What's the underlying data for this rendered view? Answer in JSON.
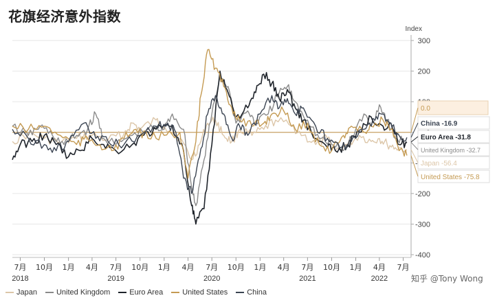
{
  "title": "花旗经济意外指数",
  "watermark": "知乎 @Tony Wong",
  "colors": {
    "japan": "#dcc6a8",
    "united_kingdom": "#8a8a8a",
    "euro_area": "#1e232a",
    "united_states": "#c49a52",
    "china": "#3b4452",
    "grid": "#e6e6e6",
    "axis": "#aaaaaa",
    "zero_line": "#c8a264"
  },
  "chart_data": {
    "type": "line",
    "ylabel": "Index",
    "ylim": [
      -400,
      300
    ],
    "yticks": [
      300,
      200,
      100,
      0,
      -100,
      -200,
      -300,
      -400
    ],
    "x_range": [
      "2018-06-01",
      "2022-07-31"
    ],
    "xticks": [
      {
        "date": "2018-07-01",
        "label": "7月"
      },
      {
        "date": "2018-10-01",
        "label": "10月"
      },
      {
        "date": "2019-01-01",
        "label": "1月"
      },
      {
        "date": "2019-04-01",
        "label": "4月"
      },
      {
        "date": "2019-07-01",
        "label": "7月"
      },
      {
        "date": "2019-10-01",
        "label": "10月"
      },
      {
        "date": "2020-01-01",
        "label": "1月"
      },
      {
        "date": "2020-04-01",
        "label": "4月"
      },
      {
        "date": "2020-07-01",
        "label": "7月"
      },
      {
        "date": "2020-10-01",
        "label": "10月"
      },
      {
        "date": "2021-01-01",
        "label": "1月"
      },
      {
        "date": "2021-04-01",
        "label": "4月"
      },
      {
        "date": "2021-07-01",
        "label": "7月"
      },
      {
        "date": "2021-10-01",
        "label": "10月"
      },
      {
        "date": "2022-01-01",
        "label": "1月"
      },
      {
        "date": "2022-04-01",
        "label": "4月"
      },
      {
        "date": "2022-07-01",
        "label": "7月"
      }
    ],
    "year_labels": [
      {
        "date": "2018-07-01",
        "label": "2018"
      },
      {
        "date": "2019-07-01",
        "label": "2019"
      },
      {
        "date": "2020-07-01",
        "label": "2020"
      },
      {
        "date": "2021-07-01",
        "label": "2021"
      },
      {
        "date": "2022-04-01",
        "label": "2022"
      }
    ],
    "end_labels": [
      {
        "label": "0.0",
        "value": 0.0,
        "style": "zero"
      },
      {
        "label": "China -16.9",
        "value": -16.9,
        "series": "China"
      },
      {
        "label": "Euro Area -31.8",
        "value": -31.8,
        "series": "Euro Area"
      },
      {
        "label": "United Kingdom -32.7",
        "value": -32.7,
        "series": "United Kingdom"
      },
      {
        "label": "Japan -56.4",
        "value": -56.4,
        "series": "Japan"
      },
      {
        "label": "United States -75.8",
        "value": -75.8,
        "series": "United States"
      }
    ],
    "series": [
      {
        "name": "Japan",
        "color_key": "japan",
        "data": [
          [
            "2018-06-01",
            -30
          ],
          [
            "2018-08-01",
            -5
          ],
          [
            "2018-10-01",
            -20
          ],
          [
            "2018-12-01",
            -35
          ],
          [
            "2019-02-01",
            -20
          ],
          [
            "2019-04-01",
            -10
          ],
          [
            "2019-06-01",
            -25
          ],
          [
            "2019-08-01",
            -5
          ],
          [
            "2019-09-01",
            30
          ],
          [
            "2019-10-01",
            10
          ],
          [
            "2019-12-01",
            40
          ],
          [
            "2020-01-01",
            20
          ],
          [
            "2020-03-01",
            -20
          ],
          [
            "2020-04-15",
            -90
          ],
          [
            "2020-05-15",
            -40
          ],
          [
            "2020-06-15",
            30
          ],
          [
            "2020-07-15",
            40
          ],
          [
            "2020-08-15",
            -10
          ],
          [
            "2020-09-15",
            -30
          ],
          [
            "2020-10-15",
            10
          ],
          [
            "2020-12-01",
            -10
          ],
          [
            "2021-01-15",
            10
          ],
          [
            "2021-03-01",
            40
          ],
          [
            "2021-05-01",
            20
          ],
          [
            "2021-06-15",
            -10
          ],
          [
            "2021-08-01",
            -40
          ],
          [
            "2021-09-15",
            -20
          ],
          [
            "2021-10-15",
            -60
          ],
          [
            "2021-12-01",
            -40
          ],
          [
            "2022-01-15",
            -10
          ],
          [
            "2022-03-01",
            -30
          ],
          [
            "2022-04-01",
            -20
          ],
          [
            "2022-05-01",
            -40
          ],
          [
            "2022-06-01",
            -50
          ],
          [
            "2022-07-15",
            -56.4
          ]
        ]
      },
      {
        "name": "United Kingdom",
        "color_key": "united_kingdom",
        "data": [
          [
            "2018-06-01",
            20
          ],
          [
            "2018-08-01",
            -10
          ],
          [
            "2018-09-15",
            20
          ],
          [
            "2018-11-01",
            -10
          ],
          [
            "2018-12-15",
            -40
          ],
          [
            "2019-02-01",
            -10
          ],
          [
            "2019-03-15",
            10
          ],
          [
            "2019-04-15",
            60
          ],
          [
            "2019-05-15",
            -20
          ],
          [
            "2019-07-01",
            -40
          ],
          [
            "2019-09-01",
            -10
          ],
          [
            "2019-11-01",
            10
          ],
          [
            "2020-01-01",
            10
          ],
          [
            "2020-02-01",
            60
          ],
          [
            "2020-03-15",
            10
          ],
          [
            "2020-04-15",
            -180
          ],
          [
            "2020-05-01",
            -240
          ],
          [
            "2020-06-01",
            -90
          ],
          [
            "2020-07-01",
            60
          ],
          [
            "2020-08-01",
            180
          ],
          [
            "2020-09-01",
            150
          ],
          [
            "2020-10-01",
            30
          ],
          [
            "2020-11-15",
            70
          ],
          [
            "2020-12-15",
            30
          ],
          [
            "2021-02-01",
            60
          ],
          [
            "2021-03-15",
            130
          ],
          [
            "2021-04-15",
            150
          ],
          [
            "2021-05-15",
            100
          ],
          [
            "2021-07-01",
            40
          ],
          [
            "2021-08-15",
            -20
          ],
          [
            "2021-10-01",
            -40
          ],
          [
            "2021-11-15",
            -60
          ],
          [
            "2021-12-15",
            -20
          ],
          [
            "2022-02-01",
            60
          ],
          [
            "2022-03-01",
            20
          ],
          [
            "2022-04-01",
            90
          ],
          [
            "2022-05-01",
            40
          ],
          [
            "2022-06-01",
            -20
          ],
          [
            "2022-07-15",
            -32.7
          ]
        ]
      },
      {
        "name": "Euro Area",
        "color_key": "euro_area",
        "data": [
          [
            "2018-06-01",
            -90
          ],
          [
            "2018-07-01",
            -40
          ],
          [
            "2018-08-15",
            -30
          ],
          [
            "2018-10-01",
            -10
          ],
          [
            "2018-11-15",
            -40
          ],
          [
            "2019-01-01",
            -80
          ],
          [
            "2019-02-15",
            -60
          ],
          [
            "2019-04-01",
            -20
          ],
          [
            "2019-05-15",
            -40
          ],
          [
            "2019-07-01",
            -60
          ],
          [
            "2019-09-01",
            -40
          ],
          [
            "2019-10-15",
            -10
          ],
          [
            "2019-12-01",
            10
          ],
          [
            "2020-02-01",
            20
          ],
          [
            "2020-03-15",
            -60
          ],
          [
            "2020-04-15",
            -240
          ],
          [
            "2020-05-01",
            -300
          ],
          [
            "2020-06-01",
            -250
          ],
          [
            "2020-07-01",
            -40
          ],
          [
            "2020-08-01",
            200
          ],
          [
            "2020-09-01",
            130
          ],
          [
            "2020-10-01",
            50
          ],
          [
            "2020-11-15",
            80
          ],
          [
            "2020-12-15",
            130
          ],
          [
            "2021-01-15",
            190
          ],
          [
            "2021-02-15",
            160
          ],
          [
            "2021-03-15",
            110
          ],
          [
            "2021-04-15",
            140
          ],
          [
            "2021-05-15",
            80
          ],
          [
            "2021-06-15",
            40
          ],
          [
            "2021-08-01",
            -20
          ],
          [
            "2021-09-15",
            -50
          ],
          [
            "2021-10-15",
            -60
          ],
          [
            "2021-12-01",
            -40
          ],
          [
            "2022-01-15",
            0
          ],
          [
            "2022-03-01",
            50
          ],
          [
            "2022-04-15",
            20
          ],
          [
            "2022-05-15",
            30
          ],
          [
            "2022-06-15",
            -40
          ],
          [
            "2022-07-15",
            -31.8
          ]
        ]
      },
      {
        "name": "United States",
        "color_key": "united_states",
        "data": [
          [
            "2018-06-01",
            20
          ],
          [
            "2018-08-01",
            10
          ],
          [
            "2018-10-01",
            20
          ],
          [
            "2018-12-01",
            -10
          ],
          [
            "2019-02-01",
            -40
          ],
          [
            "2019-03-15",
            -20
          ],
          [
            "2019-05-01",
            -40
          ],
          [
            "2019-06-15",
            -60
          ],
          [
            "2019-08-01",
            -20
          ],
          [
            "2019-09-15",
            10
          ],
          [
            "2019-11-01",
            -20
          ],
          [
            "2020-01-01",
            -10
          ],
          [
            "2020-03-01",
            0
          ],
          [
            "2020-04-01",
            -150
          ],
          [
            "2020-05-01",
            -30
          ],
          [
            "2020-05-20",
            120
          ],
          [
            "2020-06-15",
            270
          ],
          [
            "2020-07-15",
            210
          ],
          [
            "2020-08-15",
            150
          ],
          [
            "2020-09-15",
            80
          ],
          [
            "2020-10-15",
            40
          ],
          [
            "2020-12-01",
            20
          ],
          [
            "2021-01-15",
            30
          ],
          [
            "2021-02-15",
            60
          ],
          [
            "2021-04-01",
            70
          ],
          [
            "2021-05-15",
            10
          ],
          [
            "2021-07-01",
            30
          ],
          [
            "2021-08-15",
            -40
          ],
          [
            "2021-10-01",
            -60
          ],
          [
            "2021-11-15",
            -10
          ],
          [
            "2021-12-15",
            20
          ],
          [
            "2022-02-01",
            0
          ],
          [
            "2022-03-01",
            20
          ],
          [
            "2022-04-15",
            40
          ],
          [
            "2022-05-15",
            10
          ],
          [
            "2022-06-15",
            -60
          ],
          [
            "2022-07-15",
            -75.8
          ]
        ]
      },
      {
        "name": "China",
        "color_key": "china",
        "data": [
          [
            "2018-06-01",
            10
          ],
          [
            "2018-08-01",
            -20
          ],
          [
            "2018-10-01",
            -40
          ],
          [
            "2018-11-15",
            -60
          ],
          [
            "2019-01-01",
            -30
          ],
          [
            "2019-03-01",
            30
          ],
          [
            "2019-04-15",
            -20
          ],
          [
            "2019-06-01",
            -30
          ],
          [
            "2019-08-01",
            -40
          ],
          [
            "2019-10-01",
            -10
          ],
          [
            "2019-12-01",
            20
          ],
          [
            "2020-01-15",
            30
          ],
          [
            "2020-02-15",
            0
          ],
          [
            "2020-03-15",
            -150
          ],
          [
            "2020-04-15",
            -200
          ],
          [
            "2020-05-15",
            -80
          ],
          [
            "2020-06-15",
            60
          ],
          [
            "2020-07-15",
            120
          ],
          [
            "2020-08-15",
            60
          ],
          [
            "2020-09-15",
            -20
          ],
          [
            "2020-10-15",
            20
          ],
          [
            "2020-11-15",
            -10
          ],
          [
            "2021-01-01",
            60
          ],
          [
            "2021-02-15",
            120
          ],
          [
            "2021-03-15",
            80
          ],
          [
            "2021-04-15",
            110
          ],
          [
            "2021-05-15",
            60
          ],
          [
            "2021-06-15",
            80
          ],
          [
            "2021-08-01",
            20
          ],
          [
            "2021-09-15",
            -20
          ],
          [
            "2021-11-01",
            -50
          ],
          [
            "2021-12-15",
            -30
          ],
          [
            "2022-02-01",
            10
          ],
          [
            "2022-03-15",
            40
          ],
          [
            "2022-04-15",
            60
          ],
          [
            "2022-05-15",
            30
          ],
          [
            "2022-06-15",
            -10
          ],
          [
            "2022-07-15",
            -16.9
          ]
        ]
      }
    ]
  },
  "legend": [
    {
      "label": "Japan",
      "color_key": "japan"
    },
    {
      "label": "United Kingdom",
      "color_key": "united_kingdom"
    },
    {
      "label": "Euro Area",
      "color_key": "euro_area"
    },
    {
      "label": "United States",
      "color_key": "united_states"
    },
    {
      "label": "China",
      "color_key": "china"
    }
  ]
}
